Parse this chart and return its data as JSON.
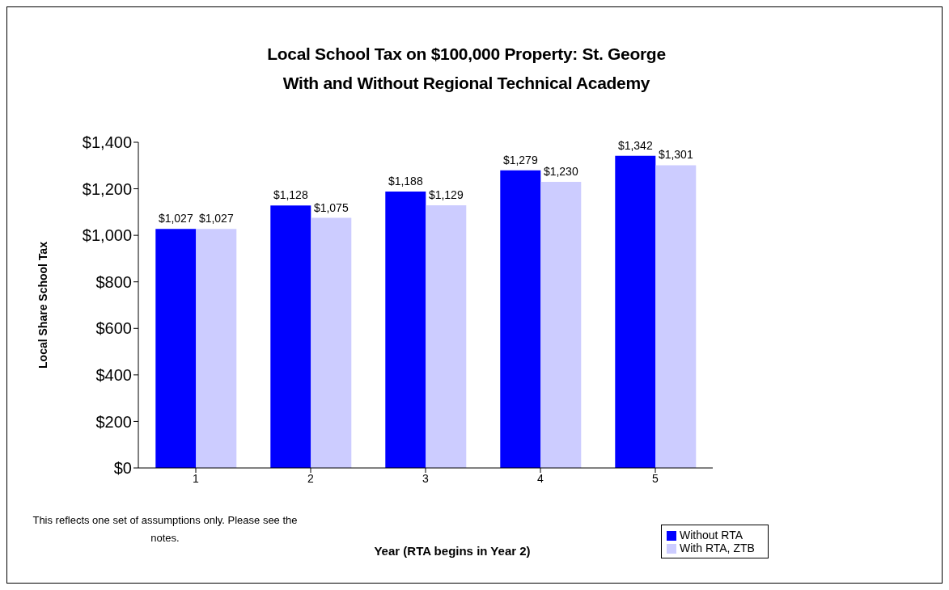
{
  "chart_data": {
    "type": "bar",
    "title": "Local School Tax on $100,000 Property:  St. George\nWith and Without Regional Technical Academy",
    "xlabel": "Year (RTA begins in Year 2)",
    "ylabel": "Local Share School Tax",
    "categories": [
      "1",
      "2",
      "3",
      "4",
      "5"
    ],
    "series": [
      {
        "name": "Without RTA",
        "color": "#0000ff",
        "values": [
          1027,
          1128,
          1188,
          1279,
          1342
        ],
        "value_labels": [
          "$1,027",
          "$1,128",
          "$1,188",
          "$1,279",
          "$1,342"
        ]
      },
      {
        "name": "With RTA, ZTB",
        "color": "#ccccff",
        "values": [
          1027,
          1075,
          1129,
          1230,
          1301
        ],
        "value_labels": [
          "$1,027",
          "$1,075",
          "$1,129",
          "$1,230",
          "$1,301"
        ]
      }
    ],
    "ylim": [
      0,
      1400
    ],
    "yticks": [
      {
        "value": 0,
        "label": "$0"
      },
      {
        "value": 200,
        "label": "$200"
      },
      {
        "value": 400,
        "label": "$400"
      },
      {
        "value": 600,
        "label": "$600"
      },
      {
        "value": 800,
        "label": "$800"
      },
      {
        "value": 1000,
        "label": "$1,000"
      },
      {
        "value": 1200,
        "label": "$1,200"
      },
      {
        "value": 1400,
        "label": "$1,400"
      }
    ],
    "grid": false,
    "legend": "bottom right",
    "annotations": [
      "This reflects one set of assumptions only. Please see the notes."
    ]
  }
}
